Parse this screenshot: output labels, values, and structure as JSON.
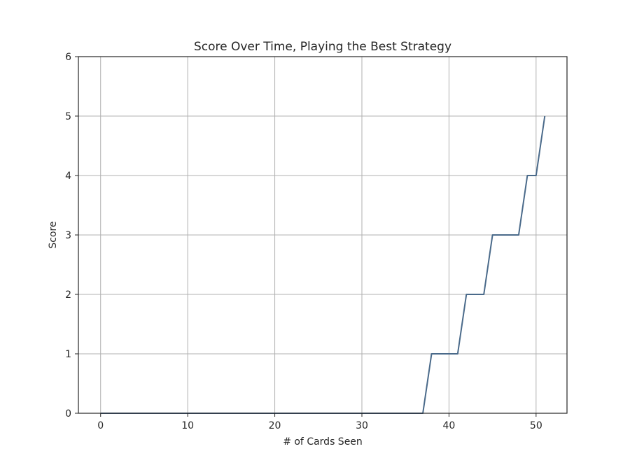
{
  "chart_data": {
    "type": "line",
    "title": "Score Over Time, Playing the Best Strategy",
    "xlabel": "# of Cards Seen",
    "ylabel": "Score",
    "xlim": [
      -2.55,
      53.55
    ],
    "ylim": [
      0,
      6
    ],
    "xticks": [
      0,
      10,
      20,
      30,
      40,
      50
    ],
    "yticks": [
      0,
      1,
      2,
      3,
      4,
      5,
      6
    ],
    "grid": true,
    "series": [
      {
        "color": "#4a6a8a",
        "x": [
          0,
          1,
          2,
          3,
          4,
          5,
          6,
          7,
          8,
          9,
          10,
          11,
          12,
          13,
          14,
          15,
          16,
          17,
          18,
          19,
          20,
          21,
          22,
          23,
          24,
          25,
          26,
          27,
          28,
          29,
          30,
          31,
          32,
          33,
          34,
          35,
          36,
          37,
          38,
          39,
          40,
          41,
          42,
          43,
          44,
          45,
          46,
          47,
          48,
          49,
          50,
          51
        ],
        "y": [
          0,
          0,
          0,
          0,
          0,
          0,
          0,
          0,
          0,
          0,
          0,
          0,
          0,
          0,
          0,
          0,
          0,
          0,
          0,
          0,
          0,
          0,
          0,
          0,
          0,
          0,
          0,
          0,
          0,
          0,
          0,
          0,
          0,
          0,
          0,
          0,
          0,
          0,
          1,
          1,
          1,
          1,
          2,
          2,
          2,
          3,
          3,
          3,
          3,
          4,
          4,
          5
        ]
      }
    ]
  }
}
